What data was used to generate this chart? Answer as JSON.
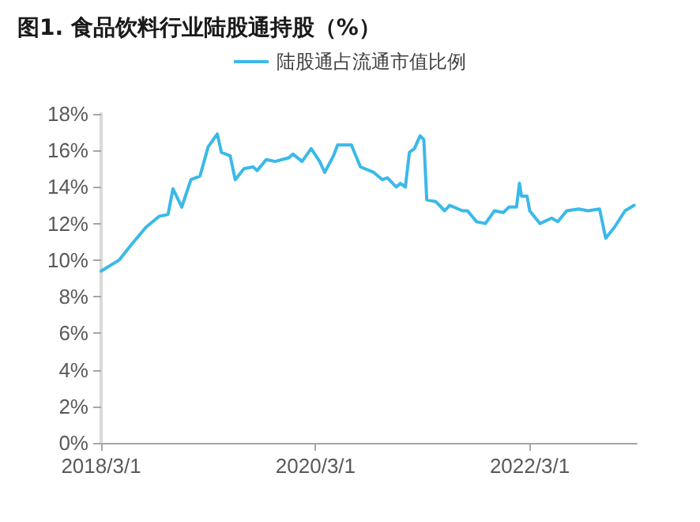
{
  "chart_data": {
    "type": "line",
    "title": "图1. 食品饮料行业陆股通持股（%）",
    "x": [
      "2018-03-01",
      "2018-05-01",
      "2018-06-15",
      "2018-08-01",
      "2018-09-15",
      "2018-10-15",
      "2018-11-01",
      "2018-12-01",
      "2019-01-01",
      "2019-02-01",
      "2019-03-01",
      "2019-04-01",
      "2019-04-15",
      "2019-05-15",
      "2019-06-01",
      "2019-07-01",
      "2019-08-01",
      "2019-08-15",
      "2019-09-15",
      "2019-10-15",
      "2019-12-01",
      "2019-12-15",
      "2020-01-15",
      "2020-02-15",
      "2020-03-15",
      "2020-04-01",
      "2020-05-01",
      "2020-05-15",
      "2020-07-01",
      "2020-08-01",
      "2020-09-15",
      "2020-10-15",
      "2020-11-01",
      "2020-12-01",
      "2020-12-15",
      "2021-01-01",
      "2021-01-15",
      "2021-02-01",
      "2021-02-20",
      "2021-03-05",
      "2021-03-15",
      "2021-04-15",
      "2021-05-15",
      "2021-06-01",
      "2021-07-15",
      "2021-08-01",
      "2021-09-01",
      "2021-10-01",
      "2021-11-01",
      "2021-12-01",
      "2021-12-20",
      "2022-01-15",
      "2022-01-25",
      "2022-02-01",
      "2022-02-20",
      "2022-03-01",
      "2022-04-05",
      "2022-05-15",
      "2022-06-05",
      "2022-07-05",
      "2022-08-15",
      "2022-09-15",
      "2022-10-25",
      "2022-11-15",
      "2022-12-15",
      "2023-01-20",
      "2023-02-20"
    ],
    "series": [
      {
        "name": "陆股通占流通市值比例",
        "color": "#3bb9e8",
        "values": [
          9.4,
          10.0,
          10.9,
          11.8,
          12.4,
          12.5,
          13.9,
          12.9,
          14.4,
          14.6,
          16.2,
          16.9,
          15.9,
          15.7,
          14.4,
          15.0,
          15.1,
          14.9,
          15.5,
          15.4,
          15.6,
          15.8,
          15.4,
          16.1,
          15.4,
          14.8,
          15.7,
          16.3,
          16.3,
          15.1,
          14.8,
          14.4,
          14.5,
          14.0,
          14.2,
          14.0,
          15.9,
          16.1,
          16.8,
          16.6,
          13.3,
          13.2,
          12.7,
          13.0,
          12.7,
          12.7,
          12.1,
          12.0,
          12.7,
          12.6,
          12.9,
          12.9,
          14.2,
          13.5,
          13.5,
          12.7,
          12.0,
          12.3,
          12.1,
          12.7,
          12.8,
          12.7,
          12.8,
          11.2,
          11.8,
          12.7,
          13.0
        ]
      }
    ],
    "xlim": [
      "2018-03-01",
      "2023-03-01"
    ],
    "xticks": [
      {
        "value": "2018-03-01",
        "label": "2018/3/1"
      },
      {
        "value": "2020-03-01",
        "label": "2020/3/1"
      },
      {
        "value": "2022-03-01",
        "label": "2022/3/1"
      }
    ],
    "ylim": [
      0,
      18
    ],
    "yticks": [
      {
        "value": 0,
        "label": "0%"
      },
      {
        "value": 2,
        "label": "2%"
      },
      {
        "value": 4,
        "label": "4%"
      },
      {
        "value": 6,
        "label": "6%"
      },
      {
        "value": 8,
        "label": "8%"
      },
      {
        "value": 10,
        "label": "10%"
      },
      {
        "value": 12,
        "label": "12%"
      },
      {
        "value": 14,
        "label": "14%"
      },
      {
        "value": 16,
        "label": "16%"
      },
      {
        "value": 18,
        "label": "18%"
      }
    ],
    "grid": false,
    "legend": "top",
    "marker": "none",
    "line_style": "solid"
  }
}
